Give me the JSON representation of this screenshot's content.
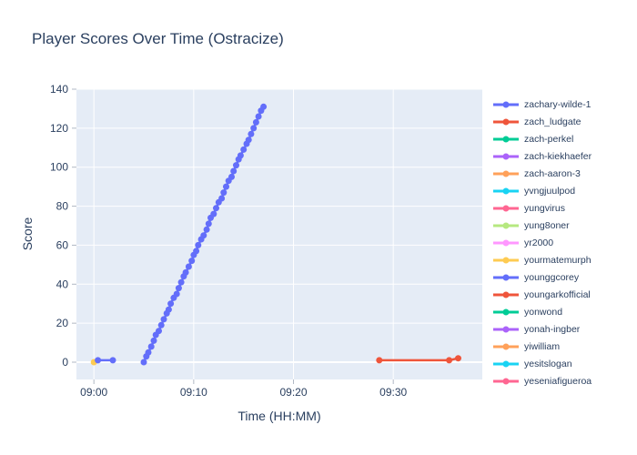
{
  "figure": {
    "background": "#ffffff",
    "plot_background": "#e5ecf6",
    "grid_color": "#ffffff",
    "text_color": "#2a3f5f",
    "tick_mark_color": "#b0b8c4"
  },
  "chart_data": {
    "type": "line",
    "title": "Player Scores Over Time (Ostracize)",
    "xlabel": "Time (HH:MM)",
    "ylabel": "Score",
    "grid": true,
    "legend_position": "right",
    "x_axis": {
      "tick_labels": [
        "09:00",
        "09:10",
        "09:20",
        "09:30"
      ],
      "tick_minutes": [
        0,
        10,
        20,
        30
      ],
      "range_minutes": [
        -1.75,
        38.92
      ]
    },
    "y_axis": {
      "tick_labels": [
        "0",
        "20",
        "40",
        "60",
        "80",
        "100",
        "120",
        "140"
      ],
      "tick_values": [
        0,
        20,
        40,
        60,
        80,
        100,
        120,
        140
      ],
      "range": [
        -8.86,
        140
      ]
    },
    "series": [
      {
        "name": "zachary-wilde-1",
        "color": "#636EFA",
        "points_minutes_after_0900": [
          [
            5.0,
            0
          ],
          [
            5.25,
            3
          ],
          [
            5.45,
            5
          ],
          [
            5.75,
            8
          ],
          [
            6.0,
            11
          ],
          [
            6.2,
            14
          ],
          [
            6.5,
            16
          ],
          [
            6.75,
            19
          ],
          [
            7.0,
            22
          ],
          [
            7.3,
            25
          ],
          [
            7.5,
            27
          ],
          [
            7.7,
            30
          ],
          [
            8.0,
            33
          ],
          [
            8.3,
            35
          ],
          [
            8.5,
            38
          ],
          [
            8.75,
            41
          ],
          [
            9.0,
            44
          ],
          [
            9.2,
            46
          ],
          [
            9.5,
            49
          ],
          [
            9.8,
            52
          ],
          [
            10.0,
            55
          ],
          [
            10.25,
            57
          ],
          [
            10.45,
            60
          ],
          [
            10.75,
            63
          ],
          [
            11.0,
            65
          ],
          [
            11.3,
            68
          ],
          [
            11.5,
            71
          ],
          [
            11.7,
            74
          ],
          [
            12.0,
            76
          ],
          [
            12.25,
            79
          ],
          [
            12.5,
            82
          ],
          [
            12.8,
            84
          ],
          [
            13.0,
            87
          ],
          [
            13.25,
            90
          ],
          [
            13.5,
            93
          ],
          [
            13.8,
            95
          ],
          [
            14.0,
            98
          ],
          [
            14.25,
            101
          ],
          [
            14.5,
            104
          ],
          [
            14.7,
            106
          ],
          [
            15.0,
            109
          ],
          [
            15.3,
            112
          ],
          [
            15.5,
            114
          ],
          [
            15.75,
            117
          ],
          [
            16.0,
            120
          ],
          [
            16.25,
            123
          ],
          [
            16.5,
            126
          ],
          [
            16.75,
            129
          ],
          [
            17.0,
            131
          ]
        ]
      },
      {
        "name": "zach_ludgate",
        "color": "#EF553B",
        "points_minutes_after_0900": []
      },
      {
        "name": "zach-perkel",
        "color": "#00CC96",
        "points_minutes_after_0900": []
      },
      {
        "name": "zach-kiekhaefer",
        "color": "#AB63FA",
        "points_minutes_after_0900": []
      },
      {
        "name": "zach-aaron-3",
        "color": "#FFA15A",
        "points_minutes_after_0900": []
      },
      {
        "name": "yvngjuulpod",
        "color": "#19D3F3",
        "points_minutes_after_0900": []
      },
      {
        "name": "yungvirus",
        "color": "#FF6692",
        "points_minutes_after_0900": []
      },
      {
        "name": "yung8oner",
        "color": "#B6E880",
        "points_minutes_after_0900": []
      },
      {
        "name": "yr2000",
        "color": "#FF97FF",
        "points_minutes_after_0900": []
      },
      {
        "name": "yourmatemurph",
        "color": "#FECB52",
        "points_minutes_after_0900": [
          [
            0,
            0
          ]
        ]
      },
      {
        "name": "younggcorey",
        "color": "#636EFA",
        "points_minutes_after_0900": [
          [
            0.4,
            1
          ],
          [
            1.9,
            1
          ]
        ]
      },
      {
        "name": "youngarkofficial",
        "color": "#EF553B",
        "points_minutes_after_0900": [
          [
            28.6,
            1
          ],
          [
            35.6,
            1
          ],
          [
            36.5,
            2
          ]
        ]
      },
      {
        "name": "yonwond",
        "color": "#00CC96",
        "points_minutes_after_0900": []
      },
      {
        "name": "yonah-ingber",
        "color": "#AB63FA",
        "points_minutes_after_0900": []
      },
      {
        "name": "yiwilliam",
        "color": "#FFA15A",
        "points_minutes_after_0900": []
      },
      {
        "name": "yesitslogan",
        "color": "#19D3F3",
        "points_minutes_after_0900": []
      },
      {
        "name": "yeseniafigueroa",
        "color": "#FF6692",
        "points_minutes_after_0900": []
      }
    ]
  }
}
